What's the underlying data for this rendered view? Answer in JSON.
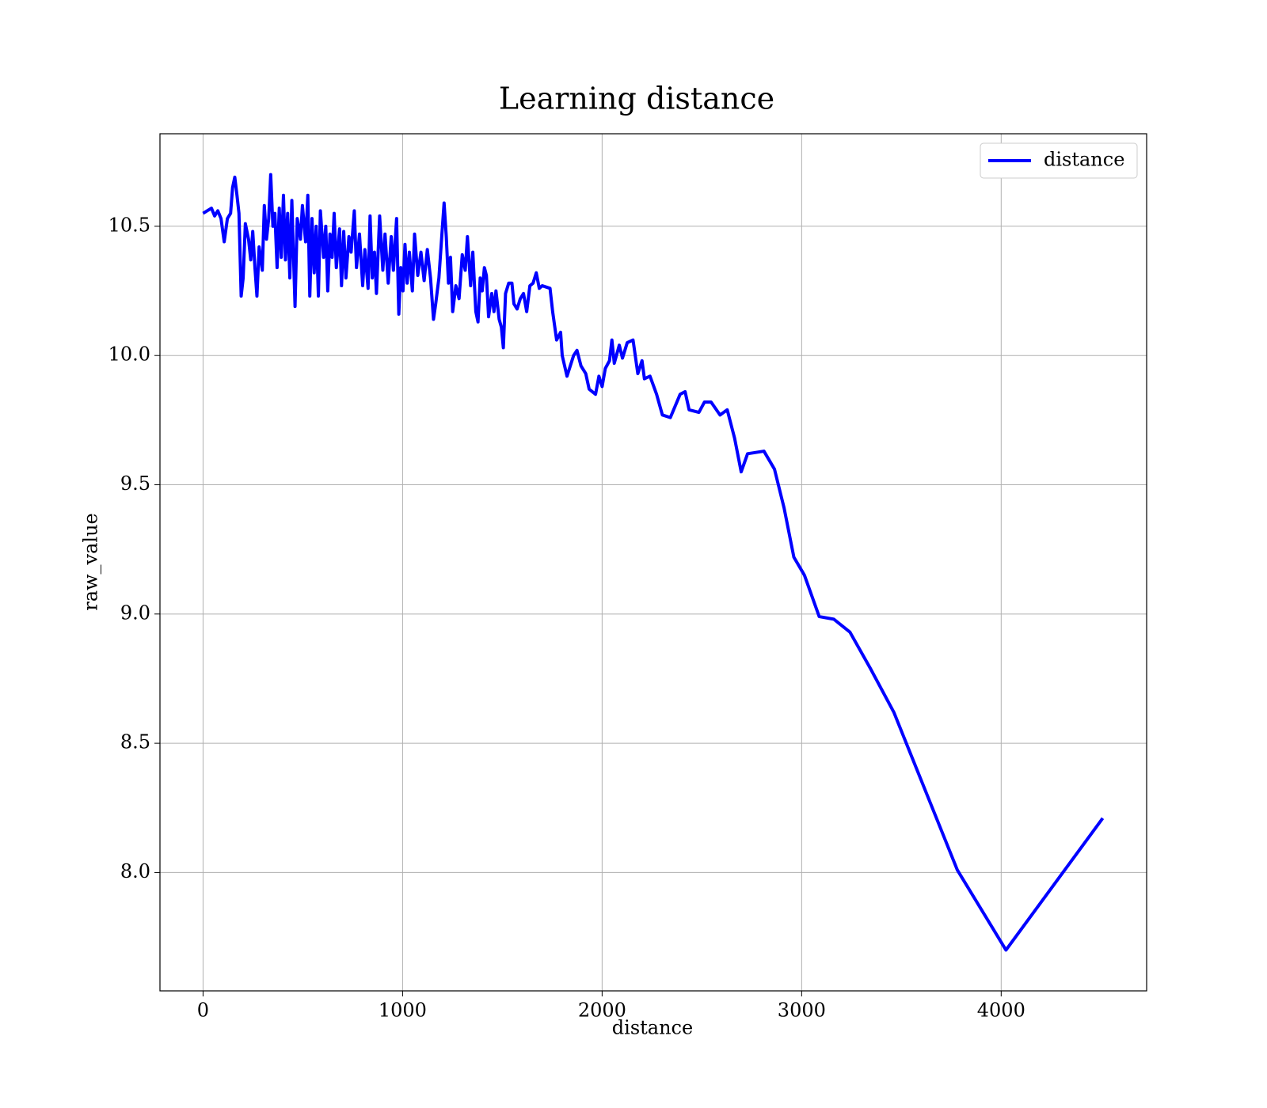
{
  "chart_data": {
    "type": "line",
    "title": "Learning distance",
    "x_label": "distance",
    "y_label": "raw_value",
    "x": [
      0,
      42,
      58,
      74,
      90,
      106,
      122,
      138,
      148,
      159,
      170,
      180,
      191,
      201,
      212,
      228,
      239,
      249,
      260,
      270,
      281,
      297,
      307,
      318,
      329,
      339,
      350,
      360,
      371,
      382,
      392,
      403,
      413,
      424,
      435,
      445,
      461,
      472,
      488,
      498,
      514,
      525,
      535,
      546,
      557,
      567,
      578,
      588,
      604,
      615,
      625,
      636,
      647,
      657,
      668,
      684,
      694,
      705,
      716,
      731,
      742,
      758,
      769,
      784,
      800,
      811,
      827,
      837,
      848,
      859,
      869,
      885,
      901,
      912,
      928,
      943,
      954,
      970,
      981,
      991,
      1002,
      1012,
      1023,
      1034,
      1049,
      1060,
      1076,
      1092,
      1108,
      1124,
      1140,
      1155,
      1166,
      1182,
      1198,
      1208,
      1219,
      1230,
      1240,
      1251,
      1267,
      1283,
      1299,
      1314,
      1325,
      1341,
      1352,
      1367,
      1378,
      1389,
      1399,
      1410,
      1420,
      1431,
      1447,
      1458,
      1468,
      1484,
      1495,
      1505,
      1516,
      1532,
      1548,
      1558,
      1574,
      1590,
      1606,
      1622,
      1638,
      1654,
      1670,
      1685,
      1700,
      1739,
      1752,
      1772,
      1792,
      1800,
      1824,
      1857,
      1874,
      1894,
      1918,
      1935,
      1967,
      1984,
      2000,
      2016,
      2037,
      2049,
      2061,
      2086,
      2102,
      2126,
      2155,
      2179,
      2200,
      2212,
      2240,
      2273,
      2302,
      2342,
      2391,
      2416,
      2436,
      2485,
      2513,
      2546,
      2591,
      2627,
      2664,
      2697,
      2729,
      2811,
      2864,
      2912,
      2961,
      3014,
      3088,
      3161,
      3242,
      3344,
      3462,
      3780,
      4024,
      4509
    ],
    "series": [
      {
        "name": "distance",
        "color": "#0000ff",
        "values": [
          10.55,
          10.57,
          10.54,
          10.56,
          10.53,
          10.44,
          10.53,
          10.55,
          10.65,
          10.69,
          10.62,
          10.55,
          10.23,
          10.3,
          10.51,
          10.45,
          10.37,
          10.48,
          10.34,
          10.23,
          10.42,
          10.33,
          10.58,
          10.45,
          10.53,
          10.7,
          10.5,
          10.55,
          10.34,
          10.57,
          10.38,
          10.62,
          10.37,
          10.55,
          10.3,
          10.6,
          10.19,
          10.53,
          10.45,
          10.58,
          10.44,
          10.62,
          10.23,
          10.53,
          10.32,
          10.5,
          10.23,
          10.56,
          10.38,
          10.5,
          10.25,
          10.47,
          10.38,
          10.55,
          10.34,
          10.49,
          10.27,
          10.48,
          10.3,
          10.46,
          10.4,
          10.56,
          10.34,
          10.47,
          10.27,
          10.41,
          10.26,
          10.54,
          10.3,
          10.4,
          10.24,
          10.54,
          10.33,
          10.47,
          10.28,
          10.46,
          10.33,
          10.53,
          10.16,
          10.34,
          10.25,
          10.43,
          10.28,
          10.4,
          10.25,
          10.47,
          10.31,
          10.4,
          10.29,
          10.41,
          10.3,
          10.14,
          10.2,
          10.3,
          10.48,
          10.59,
          10.46,
          10.28,
          10.38,
          10.17,
          10.27,
          10.22,
          10.39,
          10.33,
          10.46,
          10.27,
          10.4,
          10.17,
          10.13,
          10.3,
          10.25,
          10.34,
          10.31,
          10.15,
          10.24,
          10.17,
          10.25,
          10.14,
          10.11,
          10.03,
          10.24,
          10.28,
          10.28,
          10.2,
          10.18,
          10.22,
          10.24,
          10.17,
          10.27,
          10.28,
          10.32,
          10.26,
          10.27,
          10.26,
          10.17,
          10.06,
          10.09,
          10.0,
          9.92,
          10.0,
          10.02,
          9.96,
          9.93,
          9.87,
          9.85,
          9.92,
          9.88,
          9.95,
          9.98,
          10.06,
          9.97,
          10.04,
          9.99,
          10.05,
          10.06,
          9.93,
          9.98,
          9.91,
          9.92,
          9.85,
          9.77,
          9.76,
          9.85,
          9.86,
          9.79,
          9.78,
          9.82,
          9.82,
          9.77,
          9.79,
          9.68,
          9.55,
          9.62,
          9.63,
          9.56,
          9.41,
          9.22,
          9.15,
          8.99,
          8.98,
          8.93,
          8.79,
          8.62,
          8.01,
          7.7,
          8.21
        ]
      }
    ],
    "xlim": [
      -216,
      4729
    ],
    "xticks": [
      0,
      1000,
      2000,
      3000,
      4000
    ],
    "ylim": [
      7.542,
      10.858
    ],
    "yticks": [
      {
        "value": 8,
        "label": "8.0"
      },
      8.5,
      {
        "value": 9,
        "label": "9.0"
      },
      9.5,
      {
        "value": 10,
        "label": "10.0"
      },
      10.5
    ],
    "grid": true,
    "legend": "upper right"
  }
}
